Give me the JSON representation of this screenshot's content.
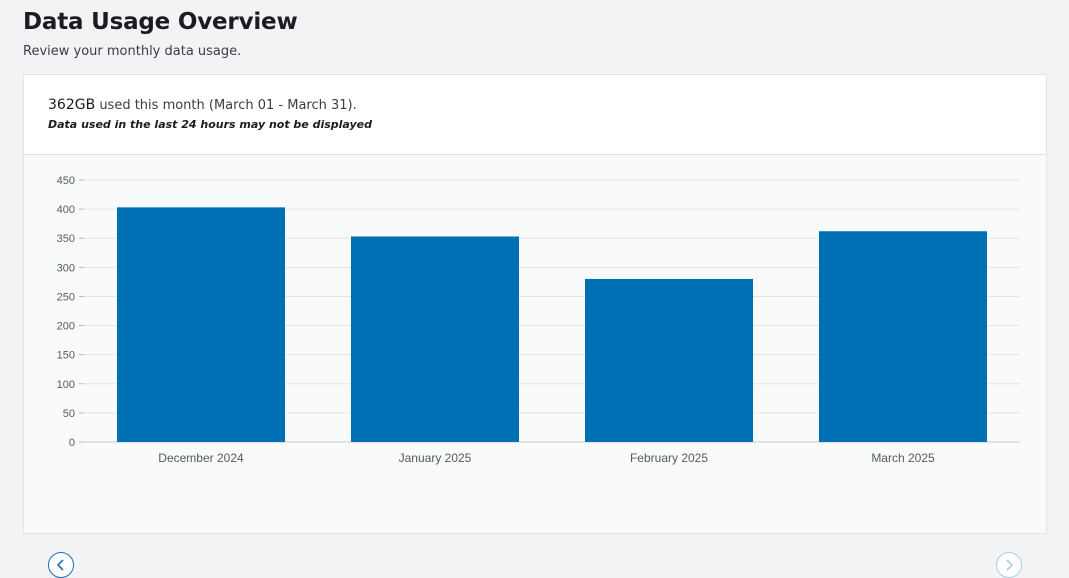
{
  "page": {
    "title": "Data Usage Overview",
    "subtitle": "Review your monthly data usage."
  },
  "summary": {
    "amount": "362GB",
    "period_text": " used this month (March 01 - March 31).",
    "note": "Data used in the last 24 hours may not be displayed"
  },
  "colors": {
    "bar": "#0070b4",
    "grid": "#e3e6e8",
    "axis_text": "#555a62",
    "nav_active": "#1f6fb5",
    "nav_disabled": "#a9cde9"
  },
  "nav": {
    "prev_icon": "chevron-left-icon",
    "next_icon": "chevron-right-icon"
  },
  "chart_data": {
    "type": "bar",
    "categories": [
      "December 2024",
      "January 2025",
      "February 2025",
      "March 2025"
    ],
    "values": [
      403,
      353,
      280,
      362
    ],
    "ylim": [
      0,
      450
    ],
    "yticks": [
      0,
      50,
      100,
      150,
      200,
      250,
      300,
      350,
      400,
      450
    ],
    "grid": true,
    "xlabel": "",
    "ylabel": ""
  }
}
